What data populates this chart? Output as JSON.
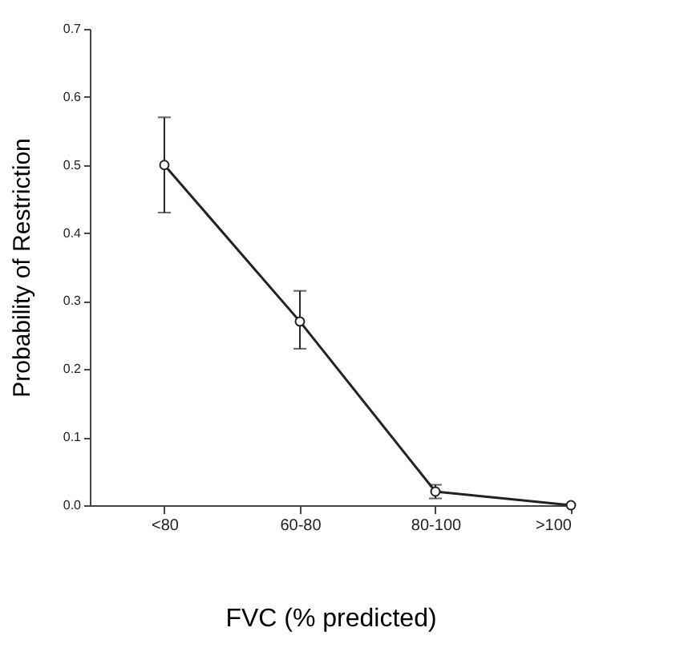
{
  "chart_data": {
    "type": "line",
    "xlabel": "FVC (% predicted)",
    "ylabel": "Probability of Restriction",
    "categories": [
      "<80",
      "60-80",
      "80-100",
      ">100"
    ],
    "series": [
      {
        "color": "#222222",
        "values": [
          0.5,
          0.27,
          0.02,
          0.0
        ],
        "errors": [
          [
            0.43,
            0.57
          ],
          [
            0.23,
            0.315
          ],
          0.01,
          null
        ]
      }
    ],
    "ylim": [
      0,
      0.7
    ],
    "yticks": [
      {
        "value": 0,
        "label": "0.0"
      },
      {
        "value": 0.1,
        "label": "0.1"
      },
      {
        "value": 0.2,
        "label": "0.2"
      },
      {
        "value": 0.3,
        "label": "0.3"
      },
      {
        "value": 0.4,
        "label": "0.4"
      },
      {
        "value": 0.5,
        "label": "0.5"
      },
      {
        "value": 0.6,
        "label": "0.6"
      },
      {
        "value": 0.7,
        "label": "0.7"
      }
    ],
    "grid": false,
    "marker": "circle",
    "line_style": "solid"
  }
}
